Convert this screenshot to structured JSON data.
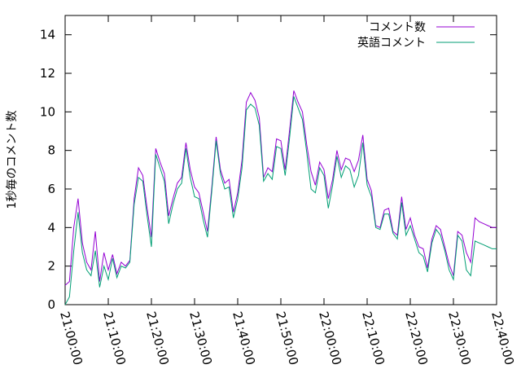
{
  "chart_data": {
    "type": "line",
    "title": "",
    "xlabel": "",
    "ylabel": "1秒毎のコメント数",
    "xlim": [
      "21:00:00",
      "22:40:00"
    ],
    "ylim": [
      0,
      15
    ],
    "xticks": [
      "21:00:00",
      "21:10:00",
      "21:20:00",
      "21:30:00",
      "21:40:00",
      "21:50:00",
      "22:00:00",
      "22:10:00",
      "22:20:00",
      "22:30:00",
      "22:40:00"
    ],
    "yticks": [
      0,
      2,
      4,
      6,
      8,
      10,
      12,
      14
    ],
    "grid": false,
    "legend_position": "top-right",
    "x": [
      "21:00:00",
      "21:01:00",
      "21:02:00",
      "21:03:00",
      "21:04:00",
      "21:05:00",
      "21:06:00",
      "21:07:00",
      "21:08:00",
      "21:09:00",
      "21:10:00",
      "21:11:00",
      "21:12:00",
      "21:13:00",
      "21:14:00",
      "21:15:00",
      "21:16:00",
      "21:17:00",
      "21:18:00",
      "21:19:00",
      "21:20:00",
      "21:21:00",
      "21:22:00",
      "21:23:00",
      "21:24:00",
      "21:25:00",
      "21:26:00",
      "21:27:00",
      "21:28:00",
      "21:29:00",
      "21:30:00",
      "21:31:00",
      "21:32:00",
      "21:33:00",
      "21:34:00",
      "21:35:00",
      "21:36:00",
      "21:37:00",
      "21:38:00",
      "21:39:00",
      "21:40:00",
      "21:41:00",
      "21:42:00",
      "21:43:00",
      "21:44:00",
      "21:45:00",
      "21:46:00",
      "21:47:00",
      "21:48:00",
      "21:49:00",
      "21:50:00",
      "21:51:00",
      "21:52:00",
      "21:53:00",
      "21:54:00",
      "21:55:00",
      "21:56:00",
      "21:57:00",
      "21:58:00",
      "21:59:00",
      "22:00:00",
      "22:01:00",
      "22:02:00",
      "22:03:00",
      "22:04:00",
      "22:05:00",
      "22:06:00",
      "22:07:00",
      "22:08:00",
      "22:09:00",
      "22:10:00",
      "22:11:00",
      "22:12:00",
      "22:13:00",
      "22:14:00",
      "22:15:00",
      "22:16:00",
      "22:17:00",
      "22:18:00",
      "22:19:00",
      "22:20:00",
      "22:21:00",
      "22:22:00",
      "22:23:00",
      "22:24:00",
      "22:25:00",
      "22:26:00",
      "22:27:00",
      "22:28:00",
      "22:29:00",
      "22:30:00",
      "22:31:00",
      "22:32:00",
      "22:33:00",
      "22:34:00",
      "22:35:00",
      "22:36:00",
      "22:37:00",
      "22:38:00",
      "22:39:00",
      "22:40:00"
    ],
    "series": [
      {
        "name": "コメント数",
        "color": "#9400d3",
        "values": [
          1.0,
          1.2,
          4.0,
          5.5,
          3.2,
          2.2,
          1.8,
          3.8,
          1.2,
          2.7,
          1.8,
          2.6,
          1.6,
          2.2,
          2.0,
          2.3,
          5.5,
          7.1,
          6.7,
          5.0,
          3.5,
          8.1,
          7.4,
          6.8,
          4.6,
          5.5,
          6.3,
          6.6,
          8.4,
          7.0,
          6.1,
          5.8,
          4.8,
          3.8,
          6.1,
          8.7,
          7.0,
          6.3,
          6.5,
          4.8,
          5.8,
          7.5,
          10.5,
          11.0,
          10.6,
          9.7,
          6.6,
          7.1,
          6.9,
          8.6,
          8.5,
          7.0,
          9.0,
          11.1,
          10.5,
          10.0,
          8.3,
          6.9,
          6.2,
          7.4,
          7.0,
          5.5,
          6.5,
          8.0,
          7.0,
          7.6,
          7.5,
          6.9,
          7.5,
          8.8,
          6.5,
          5.9,
          4.1,
          4.0,
          4.9,
          5.0,
          3.8,
          3.6,
          5.6,
          3.9,
          4.5,
          3.6,
          3.0,
          2.9,
          1.9,
          3.4,
          4.1,
          3.9,
          3.0,
          2.1,
          1.5,
          3.8,
          3.6,
          2.7,
          2.2,
          4.5,
          4.3,
          4.2,
          4.1,
          4.0,
          4.0
        ]
      },
      {
        "name": "英語コメント",
        "color": "#009e73",
        "values": [
          0.0,
          0.4,
          2.8,
          4.8,
          2.7,
          1.8,
          1.5,
          2.8,
          0.9,
          2.0,
          1.3,
          2.4,
          1.4,
          2.0,
          1.9,
          2.2,
          5.2,
          6.6,
          6.4,
          4.6,
          3.0,
          7.8,
          7.1,
          6.4,
          4.2,
          5.2,
          6.0,
          6.3,
          8.1,
          6.6,
          5.6,
          5.5,
          4.4,
          3.5,
          5.9,
          8.5,
          6.8,
          6.0,
          6.1,
          4.5,
          5.5,
          7.1,
          10.1,
          10.4,
          10.2,
          9.3,
          6.4,
          6.8,
          6.5,
          8.2,
          8.1,
          6.7,
          8.6,
          10.8,
          10.2,
          9.6,
          7.9,
          6.0,
          5.8,
          7.1,
          6.7,
          5.0,
          6.2,
          7.7,
          6.6,
          7.2,
          7.0,
          6.1,
          6.7,
          8.4,
          6.2,
          5.6,
          4.0,
          3.9,
          4.7,
          4.7,
          3.7,
          3.4,
          5.3,
          3.6,
          4.1,
          3.4,
          2.7,
          2.5,
          1.7,
          3.2,
          3.9,
          3.6,
          2.8,
          1.8,
          1.3,
          3.6,
          3.3,
          1.8,
          1.5,
          3.3,
          3.2,
          3.1,
          3.0,
          2.9,
          2.9
        ]
      }
    ]
  }
}
